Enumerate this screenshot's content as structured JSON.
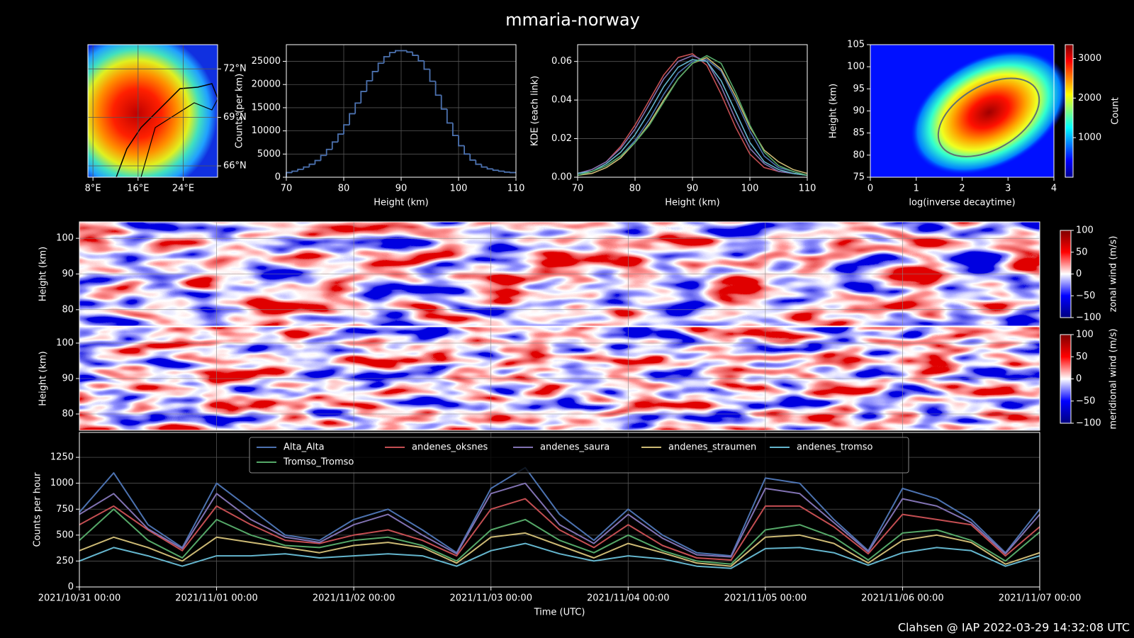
{
  "title": "mmaria-norway",
  "footer": "Clahsen @ IAP 2022-03-29 14:32:08 UTC",
  "chart_data": [
    {
      "type": "map",
      "xlim": [
        7.1,
        30.1
      ],
      "ylim": [
        65.3,
        73.5
      ],
      "xticks": [
        {
          "value": 8,
          "label": "8°E"
        },
        {
          "value": 16,
          "label": "16°E"
        },
        {
          "value": 24,
          "label": "24°E"
        }
      ],
      "yticks": [
        {
          "value": 66,
          "label": "66°N"
        },
        {
          "value": 69,
          "label": "69°N"
        },
        {
          "value": 72,
          "label": "72°N"
        }
      ],
      "grid": true
    },
    {
      "type": "histogram",
      "xlabel": "Height (km)",
      "ylabel": "Counts (per km)",
      "color": "#4c72b0",
      "grid": true,
      "bins": [
        70,
        71,
        72,
        73,
        74,
        75,
        76,
        77,
        78,
        79,
        80,
        81,
        82,
        83,
        84,
        85,
        86,
        87,
        88,
        89,
        90,
        91,
        92,
        93,
        94,
        95,
        96,
        97,
        98,
        99,
        100,
        101,
        102,
        103,
        104,
        105,
        106,
        107,
        108,
        109,
        110
      ],
      "counts": [
        1000,
        1300,
        1700,
        2200,
        2800,
        3600,
        4700,
        6000,
        7600,
        9300,
        11300,
        13700,
        16000,
        18500,
        20800,
        22800,
        24600,
        26000,
        26900,
        27300,
        27300,
        27000,
        26300,
        25100,
        23300,
        20700,
        17700,
        14700,
        11700,
        9000,
        6800,
        5000,
        3700,
        2800,
        2200,
        1800,
        1500,
        1300,
        1100,
        1000
      ],
      "xlim": [
        70,
        110
      ],
      "ylim": [
        0,
        28600
      ],
      "xticks": [
        70,
        80,
        90,
        100,
        110
      ],
      "yticks": [
        0,
        5000,
        10000,
        15000,
        20000,
        25000
      ]
    },
    {
      "type": "line",
      "xlabel": "Height (km)",
      "ylabel": "KDE (each link)",
      "grid": true,
      "x": [
        70,
        72.5,
        75,
        77.5,
        80,
        82.5,
        85,
        87.5,
        90,
        92.5,
        95,
        97.5,
        100,
        102.5,
        105,
        107.5,
        110
      ],
      "series": [
        {
          "color": "#4c72b0",
          "values": [
            0.001,
            0.003,
            0.006,
            0.011,
            0.019,
            0.03,
            0.043,
            0.054,
            0.06,
            0.061,
            0.055,
            0.04,
            0.024,
            0.011,
            0.005,
            0.003,
            0.001
          ]
        },
        {
          "color": "#c44e52",
          "values": [
            0.002,
            0.004,
            0.008,
            0.016,
            0.027,
            0.04,
            0.053,
            0.062,
            0.064,
            0.058,
            0.043,
            0.026,
            0.012,
            0.005,
            0.003,
            0.002,
            0.001
          ]
        },
        {
          "color": "#8172b2",
          "values": [
            0.002,
            0.004,
            0.008,
            0.015,
            0.025,
            0.038,
            0.051,
            0.06,
            0.063,
            0.06,
            0.047,
            0.03,
            0.015,
            0.007,
            0.003,
            0.002,
            0.001
          ]
        },
        {
          "color": "#ccb974",
          "values": [
            0.001,
            0.002,
            0.005,
            0.01,
            0.018,
            0.028,
            0.04,
            0.051,
            0.059,
            0.062,
            0.056,
            0.042,
            0.026,
            0.014,
            0.008,
            0.004,
            0.002
          ]
        },
        {
          "color": "#64b5cd",
          "values": [
            0.002,
            0.003,
            0.007,
            0.013,
            0.022,
            0.034,
            0.047,
            0.057,
            0.061,
            0.06,
            0.05,
            0.034,
            0.018,
            0.008,
            0.004,
            0.002,
            0.001
          ]
        },
        {
          "color": "#55a868",
          "values": [
            0.001,
            0.003,
            0.006,
            0.011,
            0.018,
            0.027,
            0.039,
            0.051,
            0.059,
            0.063,
            0.059,
            0.044,
            0.027,
            0.013,
            0.006,
            0.003,
            0.001
          ]
        }
      ],
      "xlim": [
        70,
        110
      ],
      "ylim": [
        0,
        0.0687
      ],
      "xticks": [
        70,
        80,
        90,
        100,
        110
      ],
      "yticks": [
        {
          "value": 0,
          "label": "0.00"
        },
        0.02,
        0.04,
        0.06
      ]
    },
    {
      "type": "hist2d",
      "xlabel": "log(inverse decaytime)",
      "ylabel": "Height (km)",
      "xlim": [
        0,
        4
      ],
      "ylim": [
        75,
        105
      ],
      "xticks": [
        0,
        1,
        2,
        3,
        4
      ],
      "yticks": [
        75,
        80,
        85,
        90,
        95,
        100,
        105
      ],
      "colorbar": {
        "label": "Count",
        "lim": [
          0,
          3350
        ],
        "ticks": [
          1000,
          2000,
          3000
        ]
      }
    },
    {
      "type": "heatmap",
      "ylabel": "Height (km)",
      "ylim": [
        75.4,
        104.6
      ],
      "yticks": [
        80,
        90,
        100
      ],
      "colorbar": {
        "label": "zonal wind (m/s)",
        "lim": [
          -100,
          100
        ],
        "ticks": [
          {
            "value": -100,
            "label": "−100"
          },
          {
            "value": -50,
            "label": "−50"
          },
          0,
          50,
          100
        ]
      }
    },
    {
      "type": "heatmap",
      "ylabel": "Height (km)",
      "ylim": [
        75.4,
        104.6
      ],
      "yticks": [
        80,
        90,
        100
      ],
      "colorbar": {
        "label": "meridional wind (m/s)",
        "lim": [
          -100,
          100
        ],
        "ticks": [
          {
            "value": -100,
            "label": "−100"
          },
          {
            "value": -50,
            "label": "−50"
          },
          0,
          50,
          100
        ]
      }
    },
    {
      "type": "line",
      "xlabel": "Time (UTC)",
      "ylabel": "Counts per hour",
      "grid": true,
      "legend": "upper center",
      "x": [
        "2021/10/31 00:00",
        "2021/10/31 06:00",
        "2021/10/31 12:00",
        "2021/10/31 18:00",
        "2021/11/01 00:00",
        "2021/11/01 06:00",
        "2021/11/01 12:00",
        "2021/11/01 18:00",
        "2021/11/02 00:00",
        "2021/11/02 06:00",
        "2021/11/02 12:00",
        "2021/11/02 18:00",
        "2021/11/03 00:00",
        "2021/11/03 06:00",
        "2021/11/03 12:00",
        "2021/11/03 18:00",
        "2021/11/04 00:00",
        "2021/11/04 06:00",
        "2021/11/04 12:00",
        "2021/11/04 18:00",
        "2021/11/05 00:00",
        "2021/11/05 06:00",
        "2021/11/05 12:00",
        "2021/11/05 18:00",
        "2021/11/06 00:00",
        "2021/11/06 06:00",
        "2021/11/06 12:00",
        "2021/11/06 18:00",
        "2021/11/07 00:00"
      ],
      "series": [
        {
          "name": "Alta_Alta",
          "color": "#4c72b0",
          "values": [
            720,
            1100,
            600,
            380,
            1000,
            750,
            500,
            450,
            650,
            750,
            550,
            330,
            950,
            1150,
            700,
            450,
            750,
            500,
            330,
            300,
            1050,
            1000,
            650,
            350,
            950,
            850,
            650,
            330,
            750
          ]
        },
        {
          "name": "andenes_oksnes",
          "color": "#c44e52",
          "values": [
            600,
            780,
            550,
            350,
            780,
            600,
            450,
            420,
            500,
            550,
            450,
            300,
            750,
            850,
            550,
            380,
            600,
            400,
            280,
            260,
            780,
            780,
            580,
            320,
            700,
            650,
            600,
            300,
            580
          ]
        },
        {
          "name": "andenes_saura",
          "color": "#8172b2",
          "values": [
            700,
            900,
            560,
            370,
            900,
            650,
            480,
            430,
            600,
            700,
            500,
            320,
            900,
            1000,
            600,
            420,
            700,
            470,
            310,
            290,
            950,
            900,
            620,
            340,
            850,
            780,
            620,
            320,
            700
          ]
        },
        {
          "name": "andenes_straumen",
          "color": "#ccb974",
          "values": [
            350,
            480,
            380,
            250,
            480,
            430,
            380,
            330,
            400,
            430,
            380,
            230,
            480,
            520,
            400,
            280,
            420,
            330,
            230,
            200,
            480,
            500,
            420,
            230,
            450,
            500,
            430,
            220,
            330
          ]
        },
        {
          "name": "andenes_tromso",
          "color": "#64b5cd",
          "values": [
            250,
            380,
            300,
            200,
            300,
            300,
            320,
            280,
            300,
            320,
            300,
            200,
            350,
            420,
            320,
            250,
            300,
            270,
            200,
            180,
            370,
            380,
            330,
            210,
            330,
            380,
            350,
            200,
            300
          ]
        },
        {
          "name": "Tromso_Tromso",
          "color": "#55a868",
          "values": [
            450,
            750,
            450,
            280,
            650,
            500,
            400,
            380,
            450,
            480,
            400,
            250,
            550,
            650,
            450,
            330,
            500,
            350,
            250,
            220,
            550,
            600,
            480,
            260,
            520,
            550,
            450,
            250,
            530
          ]
        }
      ],
      "xlim": [
        "2021/10/31 00:00",
        "2021/11/07 00:00"
      ],
      "xticks": [
        "2021/10/31 00:00",
        "2021/11/01 00:00",
        "2021/11/02 00:00",
        "2021/11/03 00:00",
        "2021/11/04 00:00",
        "2021/11/05 00:00",
        "2021/11/06 00:00",
        "2021/11/07 00:00"
      ],
      "ylim": [
        0,
        1490
      ],
      "yticks": [
        0,
        250,
        500,
        750,
        1000,
        1250
      ]
    }
  ]
}
